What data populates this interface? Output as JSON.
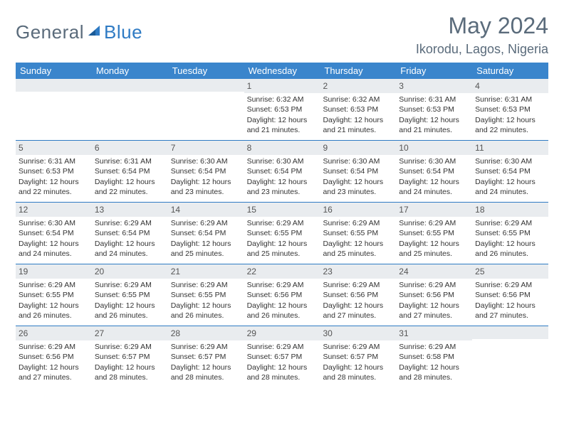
{
  "logo": {
    "text1": "General",
    "text2": "Blue"
  },
  "title": "May 2024",
  "location": "Ikorodu, Lagos, Nigeria",
  "colors": {
    "header_bg": "#3a85cc",
    "band_bg": "#e9ecef",
    "border": "#2f7bc4",
    "accent": "#2f7bc4",
    "logo_gray": "#5a6b7b"
  },
  "weekdays": [
    "Sunday",
    "Monday",
    "Tuesday",
    "Wednesday",
    "Thursday",
    "Friday",
    "Saturday"
  ],
  "weeks": [
    [
      {
        "empty": true
      },
      {
        "empty": true
      },
      {
        "empty": true
      },
      {
        "num": "1",
        "sunrise": "6:32 AM",
        "sunset": "6:53 PM",
        "daylight": "12 hours and 21 minutes."
      },
      {
        "num": "2",
        "sunrise": "6:32 AM",
        "sunset": "6:53 PM",
        "daylight": "12 hours and 21 minutes."
      },
      {
        "num": "3",
        "sunrise": "6:31 AM",
        "sunset": "6:53 PM",
        "daylight": "12 hours and 21 minutes."
      },
      {
        "num": "4",
        "sunrise": "6:31 AM",
        "sunset": "6:53 PM",
        "daylight": "12 hours and 22 minutes."
      }
    ],
    [
      {
        "num": "5",
        "sunrise": "6:31 AM",
        "sunset": "6:53 PM",
        "daylight": "12 hours and 22 minutes."
      },
      {
        "num": "6",
        "sunrise": "6:31 AM",
        "sunset": "6:54 PM",
        "daylight": "12 hours and 22 minutes."
      },
      {
        "num": "7",
        "sunrise": "6:30 AM",
        "sunset": "6:54 PM",
        "daylight": "12 hours and 23 minutes."
      },
      {
        "num": "8",
        "sunrise": "6:30 AM",
        "sunset": "6:54 PM",
        "daylight": "12 hours and 23 minutes."
      },
      {
        "num": "9",
        "sunrise": "6:30 AM",
        "sunset": "6:54 PM",
        "daylight": "12 hours and 23 minutes."
      },
      {
        "num": "10",
        "sunrise": "6:30 AM",
        "sunset": "6:54 PM",
        "daylight": "12 hours and 24 minutes."
      },
      {
        "num": "11",
        "sunrise": "6:30 AM",
        "sunset": "6:54 PM",
        "daylight": "12 hours and 24 minutes."
      }
    ],
    [
      {
        "num": "12",
        "sunrise": "6:30 AM",
        "sunset": "6:54 PM",
        "daylight": "12 hours and 24 minutes."
      },
      {
        "num": "13",
        "sunrise": "6:29 AM",
        "sunset": "6:54 PM",
        "daylight": "12 hours and 24 minutes."
      },
      {
        "num": "14",
        "sunrise": "6:29 AM",
        "sunset": "6:54 PM",
        "daylight": "12 hours and 25 minutes."
      },
      {
        "num": "15",
        "sunrise": "6:29 AM",
        "sunset": "6:55 PM",
        "daylight": "12 hours and 25 minutes."
      },
      {
        "num": "16",
        "sunrise": "6:29 AM",
        "sunset": "6:55 PM",
        "daylight": "12 hours and 25 minutes."
      },
      {
        "num": "17",
        "sunrise": "6:29 AM",
        "sunset": "6:55 PM",
        "daylight": "12 hours and 25 minutes."
      },
      {
        "num": "18",
        "sunrise": "6:29 AM",
        "sunset": "6:55 PM",
        "daylight": "12 hours and 26 minutes."
      }
    ],
    [
      {
        "num": "19",
        "sunrise": "6:29 AM",
        "sunset": "6:55 PM",
        "daylight": "12 hours and 26 minutes."
      },
      {
        "num": "20",
        "sunrise": "6:29 AM",
        "sunset": "6:55 PM",
        "daylight": "12 hours and 26 minutes."
      },
      {
        "num": "21",
        "sunrise": "6:29 AM",
        "sunset": "6:55 PM",
        "daylight": "12 hours and 26 minutes."
      },
      {
        "num": "22",
        "sunrise": "6:29 AM",
        "sunset": "6:56 PM",
        "daylight": "12 hours and 26 minutes."
      },
      {
        "num": "23",
        "sunrise": "6:29 AM",
        "sunset": "6:56 PM",
        "daylight": "12 hours and 27 minutes."
      },
      {
        "num": "24",
        "sunrise": "6:29 AM",
        "sunset": "6:56 PM",
        "daylight": "12 hours and 27 minutes."
      },
      {
        "num": "25",
        "sunrise": "6:29 AM",
        "sunset": "6:56 PM",
        "daylight": "12 hours and 27 minutes."
      }
    ],
    [
      {
        "num": "26",
        "sunrise": "6:29 AM",
        "sunset": "6:56 PM",
        "daylight": "12 hours and 27 minutes."
      },
      {
        "num": "27",
        "sunrise": "6:29 AM",
        "sunset": "6:57 PM",
        "daylight": "12 hours and 28 minutes."
      },
      {
        "num": "28",
        "sunrise": "6:29 AM",
        "sunset": "6:57 PM",
        "daylight": "12 hours and 28 minutes."
      },
      {
        "num": "29",
        "sunrise": "6:29 AM",
        "sunset": "6:57 PM",
        "daylight": "12 hours and 28 minutes."
      },
      {
        "num": "30",
        "sunrise": "6:29 AM",
        "sunset": "6:57 PM",
        "daylight": "12 hours and 28 minutes."
      },
      {
        "num": "31",
        "sunrise": "6:29 AM",
        "sunset": "6:58 PM",
        "daylight": "12 hours and 28 minutes."
      },
      {
        "empty": true
      }
    ]
  ],
  "labels": {
    "sunrise": "Sunrise:",
    "sunset": "Sunset:",
    "daylight": "Daylight:"
  }
}
